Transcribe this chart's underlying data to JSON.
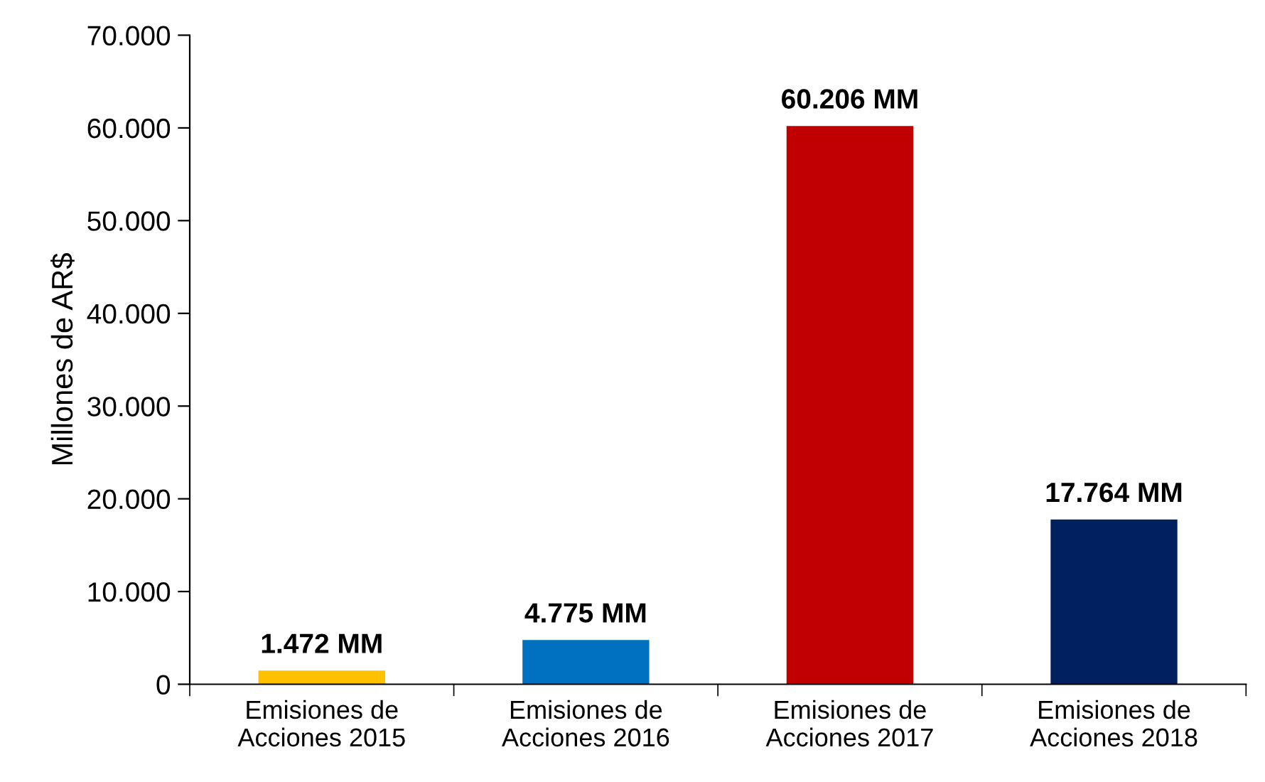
{
  "chart_data": {
    "type": "bar",
    "ylabel": "Millones de AR$",
    "categories": [
      "Emisiones de\nAcciones 2015",
      "Emisiones de\nAcciones 2016",
      "Emisiones de\nAcciones 2017",
      "Emisiones de\nAcciones 2018"
    ],
    "values": [
      1472,
      4775,
      60206,
      17764
    ],
    "colors": [
      "#ffc000",
      "#0070c0",
      "#c00000",
      "#002060"
    ],
    "value_labels": [
      "1.472 MM",
      "4.775 MM",
      "60.206 MM",
      "17.764 MM"
    ],
    "ylim": [
      0,
      70000
    ],
    "yticks": [
      0,
      {
        "value": 10000,
        "label": "10.000"
      },
      {
        "value": 20000,
        "label": "20.000"
      },
      {
        "value": 30000,
        "label": "30.000"
      },
      {
        "value": 40000,
        "label": "40.000"
      },
      {
        "value": 50000,
        "label": "50.000"
      },
      {
        "value": 60000,
        "label": "60.000"
      },
      {
        "value": 70000,
        "label": "70.000"
      }
    ],
    "grid": false
  }
}
